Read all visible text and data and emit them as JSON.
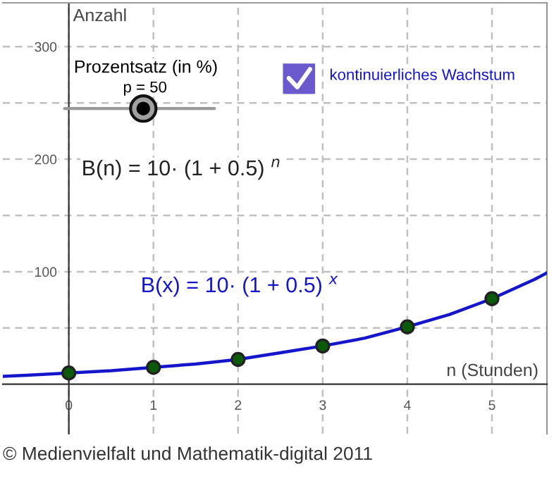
{
  "chart_data": {
    "type": "scatter",
    "xlabel": "n (Stunden)",
    "ylabel": "Anzahl",
    "x": [
      0,
      1,
      2,
      3,
      4,
      5
    ],
    "series": [
      {
        "color": "#0a5a0a",
        "marker": "circle",
        "values": [
          10,
          15,
          22,
          34,
          51,
          76
        ]
      },
      {
        "type": "line",
        "marker": "none",
        "color": "#1515cc",
        "x": [
          -0.78,
          -0.5,
          0,
          0.5,
          1,
          1.5,
          2,
          2.5,
          3,
          3.5,
          4,
          4.5,
          5,
          5.5,
          5.65
        ],
        "values": [
          7,
          8,
          10,
          12,
          15,
          18,
          22,
          28,
          34,
          41,
          51,
          62,
          76,
          93,
          99
        ]
      }
    ],
    "xlim": [
      -0.78,
      5.65
    ],
    "ylim": [
      -44,
      339
    ],
    "xticks": [
      0,
      1,
      2,
      3,
      4,
      5
    ],
    "yticks": [
      {
        "value": 50,
        "label": null
      },
      100,
      {
        "value": 150,
        "label": null
      },
      200,
      {
        "value": 250,
        "label": null
      },
      300
    ],
    "grid": true,
    "annotations": [
      "Prozentsatz (in %)",
      "p = 50",
      "B(n) = 10· (1 + 0.5) $^{n}$",
      "kontinuierliches Wachstum",
      "B(x) = 10· (1 + 0.5) $^{x}$",
      "© Medienvielfalt und Mathematik-digital 2011"
    ]
  }
}
